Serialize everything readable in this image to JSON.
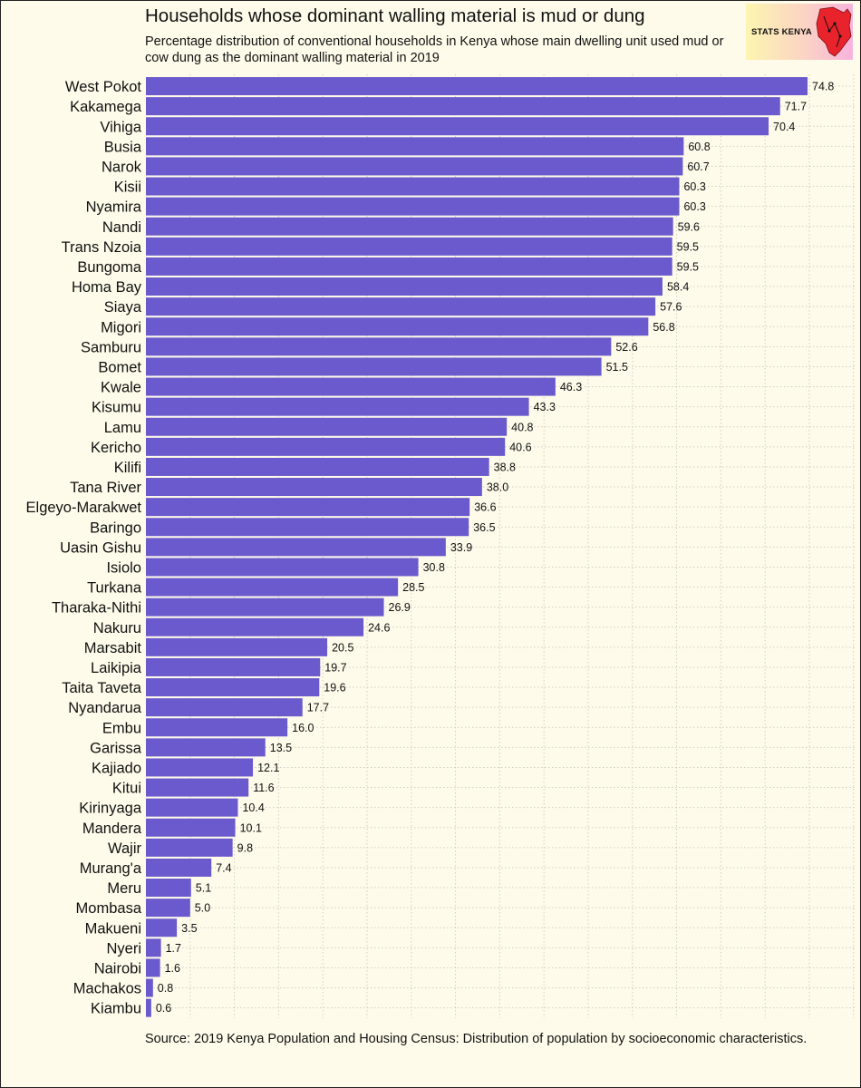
{
  "header": {
    "title": "Households whose dominant walling material is mud or dung",
    "subtitle": "Percentage distribution of conventional households in Kenya whose main dwelling unit used mud or cow dung as the dominant walling material in 2019"
  },
  "logo": {
    "text": "STATS KENYA",
    "icon": "kenya-map-icon"
  },
  "caption": "Source: 2019 Kenya Population and Housing Census: Distribution of population by socioeconomic characteristics.",
  "colors": {
    "bar": "#6a5acd",
    "background": "#fffbea",
    "grid": "#cfcfc4",
    "logo_map": "#e8232b"
  },
  "chart_data": {
    "type": "bar",
    "orientation": "horizontal",
    "title": "Households whose dominant walling material is mud or dung",
    "xlabel": "",
    "ylabel": "",
    "xlim": [
      0,
      80
    ],
    "grid": true,
    "categories": [
      "West Pokot",
      "Kakamega",
      "Vihiga",
      "Busia",
      "Narok",
      "Kisii",
      "Nyamira",
      "Nandi",
      "Trans Nzoia",
      "Bungoma",
      "Homa Bay",
      "Siaya",
      "Migori",
      "Samburu",
      "Bomet",
      "Kwale",
      "Kisumu",
      "Lamu",
      "Kericho",
      "Kilifi",
      "Tana River",
      "Elgeyo-Marakwet",
      "Baringo",
      "Uasin Gishu",
      "Isiolo",
      "Turkana",
      "Tharaka-Nithi",
      "Nakuru",
      "Marsabit",
      "Laikipia",
      "Taita Taveta",
      "Nyandarua",
      "Embu",
      "Garissa",
      "Kajiado",
      "Kitui",
      "Kirinyaga",
      "Mandera",
      "Wajir",
      "Murang'a",
      "Meru",
      "Mombasa",
      "Makueni",
      "Nyeri",
      "Nairobi",
      "Machakos",
      "Kiambu"
    ],
    "values": [
      74.8,
      71.7,
      70.4,
      60.8,
      60.7,
      60.3,
      60.3,
      59.6,
      59.5,
      59.5,
      58.4,
      57.6,
      56.8,
      52.6,
      51.5,
      46.3,
      43.3,
      40.8,
      40.6,
      38.8,
      38.0,
      36.6,
      36.5,
      33.9,
      30.8,
      28.5,
      26.9,
      24.6,
      20.5,
      19.7,
      19.6,
      17.7,
      16.0,
      13.5,
      12.1,
      11.6,
      10.4,
      10.1,
      9.8,
      7.4,
      5.1,
      5.0,
      3.5,
      1.7,
      1.6,
      0.8,
      0.6
    ],
    "value_labels": [
      "74.8",
      "71.7",
      "70.4",
      "60.8",
      "60.7",
      "60.3",
      "60.3",
      "59.6",
      "59.5",
      "59.5",
      "58.4",
      "57.6",
      "56.8",
      "52.6",
      "51.5",
      "46.3",
      "43.3",
      "40.8",
      "40.6",
      "38.8",
      "38.0",
      "36.6",
      "36.5",
      "33.9",
      "30.8",
      "28.5",
      "26.9",
      "24.6",
      "20.5",
      "19.7",
      "19.6",
      "17.7",
      "16.0",
      "13.5",
      "12.1",
      "11.6",
      "10.4",
      "10.1",
      "9.8",
      "7.4",
      "5.1",
      "5.0",
      "3.5",
      "1.7",
      "1.6",
      "0.8",
      "0.6"
    ],
    "gridlines_at": [
      10,
      30,
      50,
      70
    ]
  }
}
